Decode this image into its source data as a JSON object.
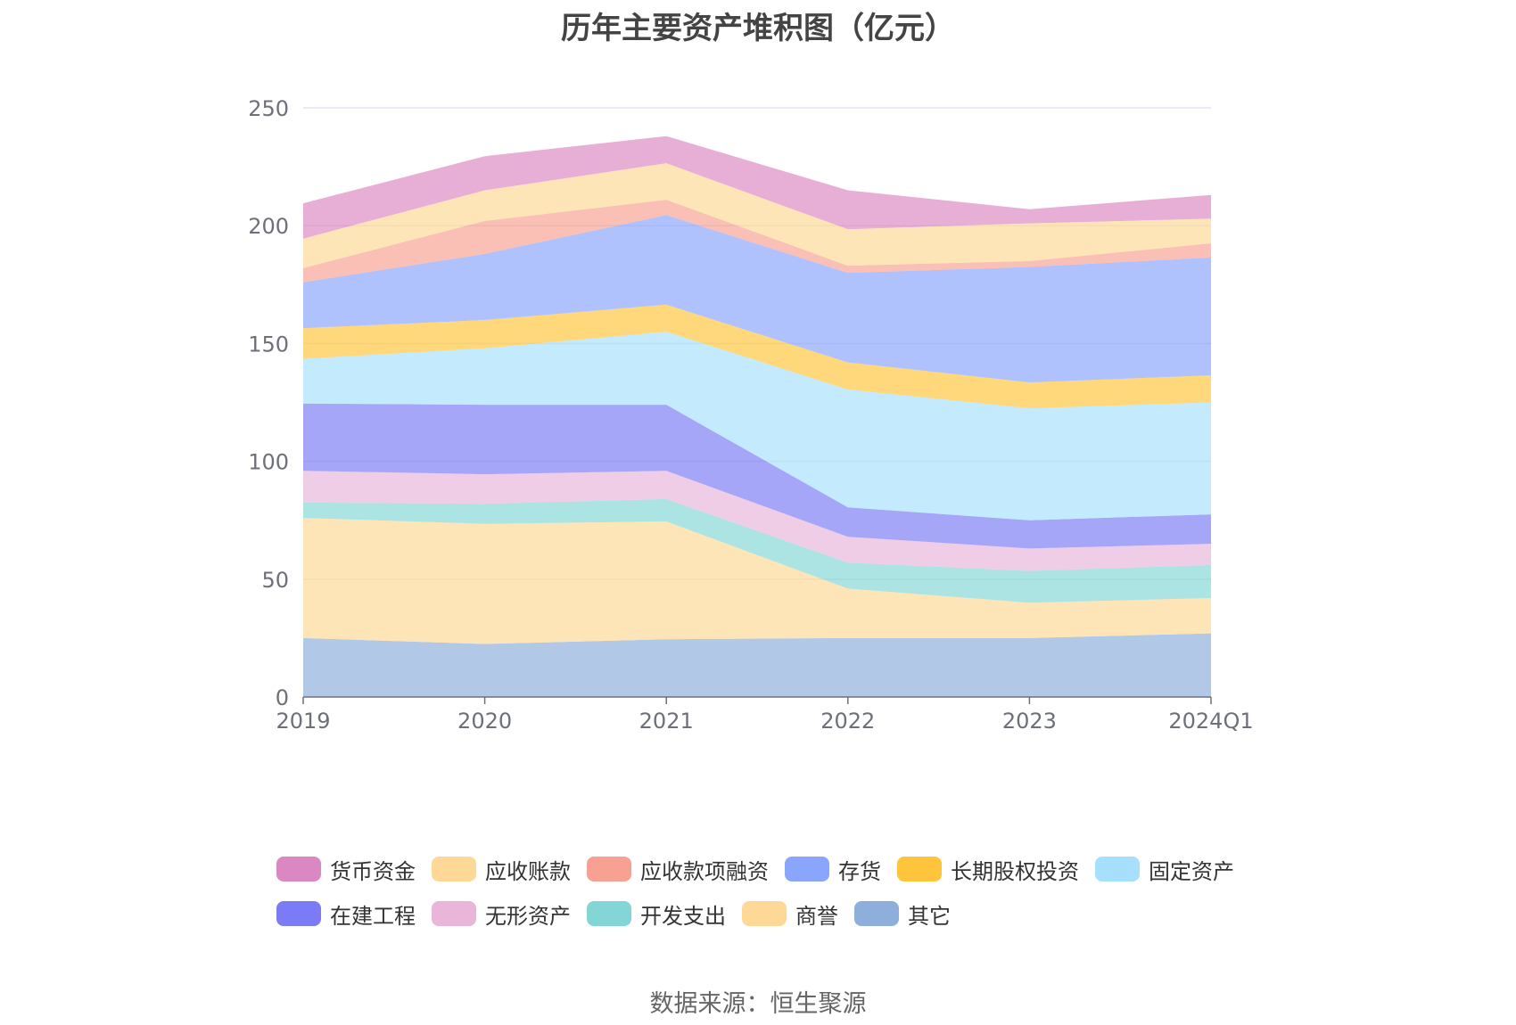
{
  "chart_data": {
    "type": "area",
    "stacked": true,
    "title": "历年主要资产堆积图（亿元）",
    "categories": [
      "2019",
      "2020",
      "2021",
      "2022",
      "2023",
      "2024Q1"
    ],
    "ylim": [
      0,
      250
    ],
    "yticks": [
      0,
      50,
      100,
      150,
      200,
      250
    ],
    "grid": true,
    "legend_position": "bottom",
    "source": "数据来源：恒生聚源",
    "series": [
      {
        "name": "其它",
        "color": "#8eaedb",
        "values": [
          25,
          22.5,
          24.5,
          25,
          25,
          27
        ]
      },
      {
        "name": "商誉",
        "color": "#fed896",
        "values": [
          51,
          51,
          50,
          21,
          15,
          15
        ]
      },
      {
        "name": "开发支出",
        "color": "#84d6d6",
        "values": [
          6.5,
          8.5,
          9.5,
          11,
          13.5,
          14
        ]
      },
      {
        "name": "无形资产",
        "color": "#e9b6da",
        "values": [
          13.5,
          12.5,
          12,
          11,
          9.5,
          9
        ]
      },
      {
        "name": "在建工程",
        "color": "#7b7cf5",
        "values": [
          28.5,
          29.5,
          28,
          12.5,
          12,
          12.5
        ]
      },
      {
        "name": "固定资产",
        "color": "#a7e0fc",
        "values": [
          19,
          24,
          31,
          50,
          47.5,
          47.5
        ]
      },
      {
        "name": "长期股权投资",
        "color": "#fec53c",
        "values": [
          13,
          12,
          11.5,
          11.5,
          11,
          11.5
        ]
      },
      {
        "name": "存货",
        "color": "#8aa5fc",
        "values": [
          19.5,
          28,
          38,
          38,
          49,
          50
        ]
      },
      {
        "name": "应收款项融资",
        "color": "#f8a192",
        "values": [
          6,
          14,
          6.5,
          3,
          2.5,
          6
        ]
      },
      {
        "name": "应收账款",
        "color": "#fed896",
        "values": [
          12.5,
          13,
          15.5,
          15.5,
          16,
          10.5
        ]
      },
      {
        "name": "货币资金",
        "color": "#db88c2",
        "values": [
          15,
          14.5,
          11.5,
          16.5,
          6,
          10
        ]
      }
    ]
  },
  "legend": [
    [
      {
        "label": "货币资金",
        "color": "#db88c2"
      },
      {
        "label": "应收账款",
        "color": "#fed896"
      },
      {
        "label": "应收款项融资",
        "color": "#f8a192"
      },
      {
        "label": "存货",
        "color": "#8aa5fc"
      },
      {
        "label": "长期股权投资",
        "color": "#fec53c"
      },
      {
        "label": "固定资产",
        "color": "#a7e0fc"
      }
    ],
    [
      {
        "label": "在建工程",
        "color": "#7b7cf5"
      },
      {
        "label": "无形资产",
        "color": "#e9b6da"
      },
      {
        "label": "开发支出",
        "color": "#84d6d6"
      },
      {
        "label": "商誉",
        "color": "#fed896"
      },
      {
        "label": "其它",
        "color": "#8eaedb"
      }
    ]
  ]
}
